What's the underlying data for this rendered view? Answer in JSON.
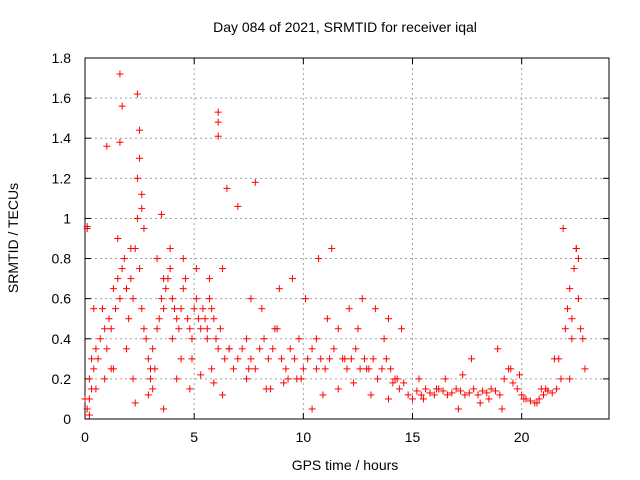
{
  "chart_data": {
    "type": "scatter",
    "title": "Day 084 of 2021, SRMTID for receiver iqal",
    "xlabel": "GPS time / hours",
    "ylabel": "SRMTID / TECUs",
    "xlim": [
      0,
      24
    ],
    "ylim": [
      0,
      1.8
    ],
    "xticks": [
      0,
      5,
      10,
      15,
      20
    ],
    "yticks": [
      0,
      0.2,
      0.4,
      0.6,
      0.8,
      1,
      1.2,
      1.4,
      1.6,
      1.8
    ],
    "xtick_labels": [
      "0",
      "5",
      "10",
      "15",
      "20"
    ],
    "ytick_labels": [
      "0",
      "0.2",
      "0.4",
      "0.6",
      "0.8",
      "1",
      "1.2",
      "1.4",
      "1.6",
      "1.8"
    ],
    "grid": true,
    "marker": "+",
    "color": "#ff0000",
    "series": [
      {
        "name": "SRMTID",
        "x": [
          0.0,
          0.1,
          0.1,
          0.2,
          0.3,
          0.4,
          0.5,
          0.6,
          0.7,
          0.8,
          0.9,
          1.0,
          1.1,
          1.2,
          1.3,
          1.4,
          1.5,
          1.6,
          1.7,
          1.8,
          1.9,
          2.0,
          2.1,
          2.2,
          2.3,
          2.4,
          2.5,
          2.6,
          2.7,
          2.8,
          2.9,
          3.0,
          3.1,
          3.2,
          3.3,
          3.4,
          3.5,
          3.6,
          3.7,
          3.8,
          3.9,
          4.0,
          4.1,
          4.2,
          4.3,
          4.4,
          4.5,
          4.6,
          4.7,
          4.8,
          4.9,
          5.0,
          5.1,
          5.2,
          5.3,
          5.4,
          5.5,
          5.6,
          5.7,
          5.8,
          5.9,
          6.0,
          6.1,
          6.2,
          6.4,
          6.6,
          6.8,
          7.0,
          7.2,
          7.4,
          7.6,
          7.8,
          8.0,
          8.2,
          8.4,
          8.6,
          8.8,
          9.0,
          9.2,
          9.4,
          9.6,
          9.8,
          10.0,
          10.2,
          10.4,
          10.6,
          10.8,
          11.0,
          11.2,
          11.4,
          11.6,
          11.8,
          12.0,
          12.2,
          12.4,
          12.6,
          12.8,
          13.0,
          13.2,
          13.4,
          13.6,
          13.8,
          14.0,
          14.2,
          14.4,
          14.6,
          14.8,
          15.0,
          15.2,
          15.4,
          15.6,
          15.8,
          16.0,
          16.2,
          16.4,
          16.6,
          16.8,
          17.0,
          17.2,
          17.4,
          17.6,
          17.8,
          18.0,
          18.2,
          18.4,
          18.6,
          18.8,
          19.0,
          19.2,
          19.4,
          19.6,
          19.8,
          20.0,
          20.2,
          20.4,
          20.6,
          20.8,
          21.0,
          21.2,
          21.4,
          21.6,
          21.8,
          22.0,
          22.1,
          22.2,
          22.3,
          22.4,
          22.5,
          22.6,
          22.7,
          22.8,
          1.6,
          1.7,
          2.4,
          2.5,
          2.5,
          1.0,
          6.1,
          6.1,
          6.1,
          0.1,
          1.6,
          2.4,
          2.6,
          2.6,
          0.2,
          0.2,
          0.5,
          1.2,
          2.3,
          2.9,
          3.6,
          4.2,
          4.8,
          5.3,
          5.9,
          6.3,
          7.4,
          8.3,
          9.1,
          9.7,
          10.4,
          10.9,
          11.6,
          12.3,
          13.1,
          13.9,
          14.3,
          0.3,
          0.9,
          1.5,
          2.1,
          2.7,
          3.3,
          3.9,
          4.5,
          5.1,
          5.7,
          6.3,
          7.6,
          8.1,
          8.9,
          9.5,
          10.1,
          10.7,
          11.3,
          12.1,
          12.7,
          13.3,
          13.9,
          14.5,
          0.4,
          1.3,
          2.2,
          3.1,
          4.0,
          4.9,
          5.8,
          6.6,
          7.5,
          8.7,
          9.9,
          11.1,
          12.5,
          13.7,
          1.9,
          3.0,
          4.4,
          5.6,
          8.5,
          9.3,
          10.6,
          11.9,
          12.9,
          14.1,
          15.3,
          16.1,
          17.3,
          18.5,
          19.5,
          20.7,
          21.5,
          21.9,
          22.3,
          22.6,
          22.9,
          16.5,
          17.7,
          18.9,
          19.9,
          20.9,
          21.7,
          15.5,
          17.1,
          18.1,
          19.1,
          20.1,
          21.1,
          22.2,
          22.5,
          3.6,
          6.5,
          7.0,
          7.8,
          3.5
        ],
        "y": [
          0.1,
          0.95,
          0.05,
          0.2,
          0.15,
          0.25,
          0.35,
          0.3,
          0.4,
          0.55,
          0.2,
          0.35,
          0.5,
          0.45,
          0.65,
          0.55,
          0.7,
          0.6,
          0.75,
          0.8,
          0.65,
          0.5,
          0.7,
          0.6,
          0.85,
          1.0,
          0.75,
          0.55,
          0.45,
          0.4,
          0.3,
          0.2,
          0.15,
          0.25,
          0.45,
          0.5,
          0.6,
          0.55,
          0.65,
          0.7,
          0.75,
          0.6,
          0.55,
          0.5,
          0.45,
          0.55,
          0.65,
          0.7,
          0.5,
          0.45,
          0.4,
          0.55,
          0.6,
          0.5,
          0.45,
          0.55,
          0.5,
          0.45,
          0.6,
          0.55,
          0.5,
          0.4,
          0.35,
          0.45,
          0.3,
          0.35,
          0.25,
          0.3,
          0.35,
          0.4,
          0.3,
          0.25,
          0.35,
          0.4,
          0.3,
          0.35,
          0.45,
          0.3,
          0.25,
          0.35,
          0.3,
          0.4,
          0.25,
          0.3,
          0.35,
          0.4,
          0.3,
          0.25,
          0.3,
          0.35,
          0.45,
          0.3,
          0.25,
          0.3,
          0.35,
          0.25,
          0.3,
          0.25,
          0.3,
          0.2,
          0.25,
          0.3,
          0.25,
          0.2,
          0.15,
          0.18,
          0.12,
          0.1,
          0.14,
          0.12,
          0.15,
          0.13,
          0.12,
          0.15,
          0.14,
          0.12,
          0.13,
          0.15,
          0.14,
          0.12,
          0.13,
          0.15,
          0.12,
          0.14,
          0.13,
          0.15,
          0.14,
          0.12,
          0.2,
          0.25,
          0.18,
          0.15,
          0.12,
          0.1,
          0.09,
          0.08,
          0.1,
          0.12,
          0.14,
          0.13,
          0.15,
          0.2,
          0.45,
          0.55,
          0.65,
          0.5,
          0.75,
          0.85,
          0.6,
          0.45,
          0.4,
          1.72,
          1.56,
          1.62,
          1.44,
          1.3,
          1.36,
          1.53,
          1.48,
          1.41,
          0.96,
          1.38,
          1.2,
          1.12,
          1.05,
          0.1,
          0.02,
          0.15,
          0.25,
          0.08,
          0.12,
          0.05,
          0.2,
          0.15,
          0.22,
          0.18,
          0.12,
          0.2,
          0.15,
          0.18,
          0.2,
          0.05,
          0.12,
          0.15,
          0.18,
          0.12,
          0.1,
          0.2,
          0.3,
          0.45,
          0.9,
          0.85,
          0.95,
          0.8,
          0.85,
          0.8,
          0.75,
          0.7,
          0.75,
          0.6,
          0.55,
          0.65,
          0.7,
          0.6,
          0.8,
          0.85,
          0.55,
          0.6,
          0.55,
          0.5,
          0.45,
          0.55,
          0.25,
          0.2,
          0.35,
          0.4,
          0.3,
          0.25,
          0.35,
          0.25,
          0.45,
          0.2,
          0.5,
          0.45,
          0.4,
          0.35,
          0.25,
          0.3,
          0.4,
          0.15,
          0.2,
          0.25,
          0.3,
          0.25,
          0.18,
          0.2,
          0.15,
          0.22,
          0.1,
          0.25,
          0.08,
          0.3,
          0.95,
          0.4,
          0.8,
          0.25,
          0.2,
          0.3,
          0.35,
          0.22,
          0.15,
          0.3,
          0.1,
          0.05,
          0.08,
          0.05,
          0.1,
          0.15,
          0.2,
          0.85,
          0.7,
          1.15,
          1.06,
          1.18,
          1.02
        ]
      }
    ]
  }
}
